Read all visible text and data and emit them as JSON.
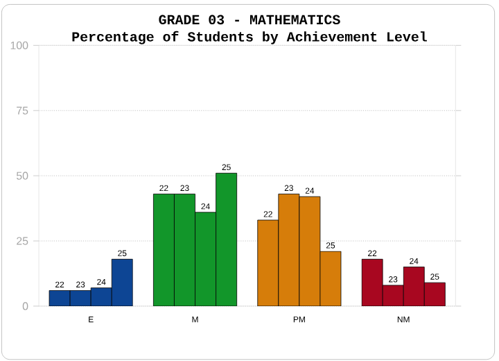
{
  "chart_data": {
    "type": "bar",
    "title": "GRADE 03 - MATHEMATICS",
    "subtitle": "Percentage of Students by Achievement Level",
    "categories": [
      "E",
      "M",
      "PM",
      "NM"
    ],
    "series": [
      {
        "name": "22",
        "colors": [
          "#0d4594",
          "#12962a",
          "#d67d0a",
          "#a80720"
        ],
        "values": [
          6,
          43,
          33,
          18
        ]
      },
      {
        "name": "23",
        "colors": [
          "#0d4594",
          "#12962a",
          "#d67d0a",
          "#a80720"
        ],
        "values": [
          6,
          43,
          43,
          8
        ]
      },
      {
        "name": "24",
        "colors": [
          "#0d4594",
          "#12962a",
          "#d67d0a",
          "#a80720"
        ],
        "values": [
          7,
          36,
          42,
          15
        ]
      },
      {
        "name": "25",
        "colors": [
          "#0d4594",
          "#12962a",
          "#d67d0a",
          "#a80720"
        ],
        "values": [
          18,
          51,
          21,
          9
        ]
      }
    ],
    "ylim": [
      0,
      100
    ],
    "yticks": [
      0,
      25,
      50,
      75,
      100
    ],
    "grid": "y"
  }
}
